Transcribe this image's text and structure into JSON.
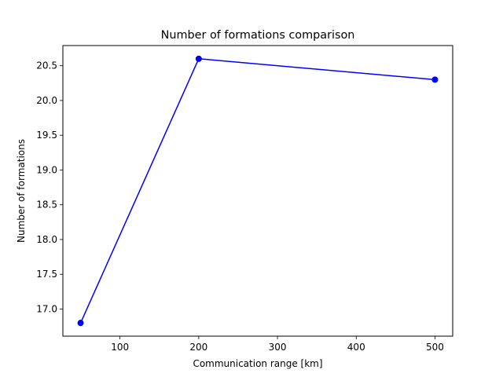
{
  "chart_data": {
    "type": "line",
    "title": "Number of formations comparison",
    "xlabel": "Communication range [km]",
    "ylabel": "Number of formations",
    "x": [
      50,
      200,
      500
    ],
    "series": [
      {
        "values": [
          16.8,
          20.6,
          20.3
        ],
        "color": "#0000ff",
        "marker": "circle"
      }
    ],
    "xlim": [
      27.5,
      522.5
    ],
    "ylim": [
      16.61,
      20.79
    ],
    "xticks": [
      100,
      200,
      300,
      400,
      500
    ],
    "xtick_labels": [
      "100",
      "200",
      "300",
      "400",
      "500"
    ],
    "yticks": [
      17.0,
      17.5,
      18.0,
      18.5,
      19.0,
      19.5,
      20.0,
      20.5
    ],
    "ytick_labels": [
      "17.0",
      "17.5",
      "18.0",
      "18.5",
      "19.0",
      "19.5",
      "20.0",
      "20.5"
    ],
    "grid": false,
    "legend": false
  }
}
